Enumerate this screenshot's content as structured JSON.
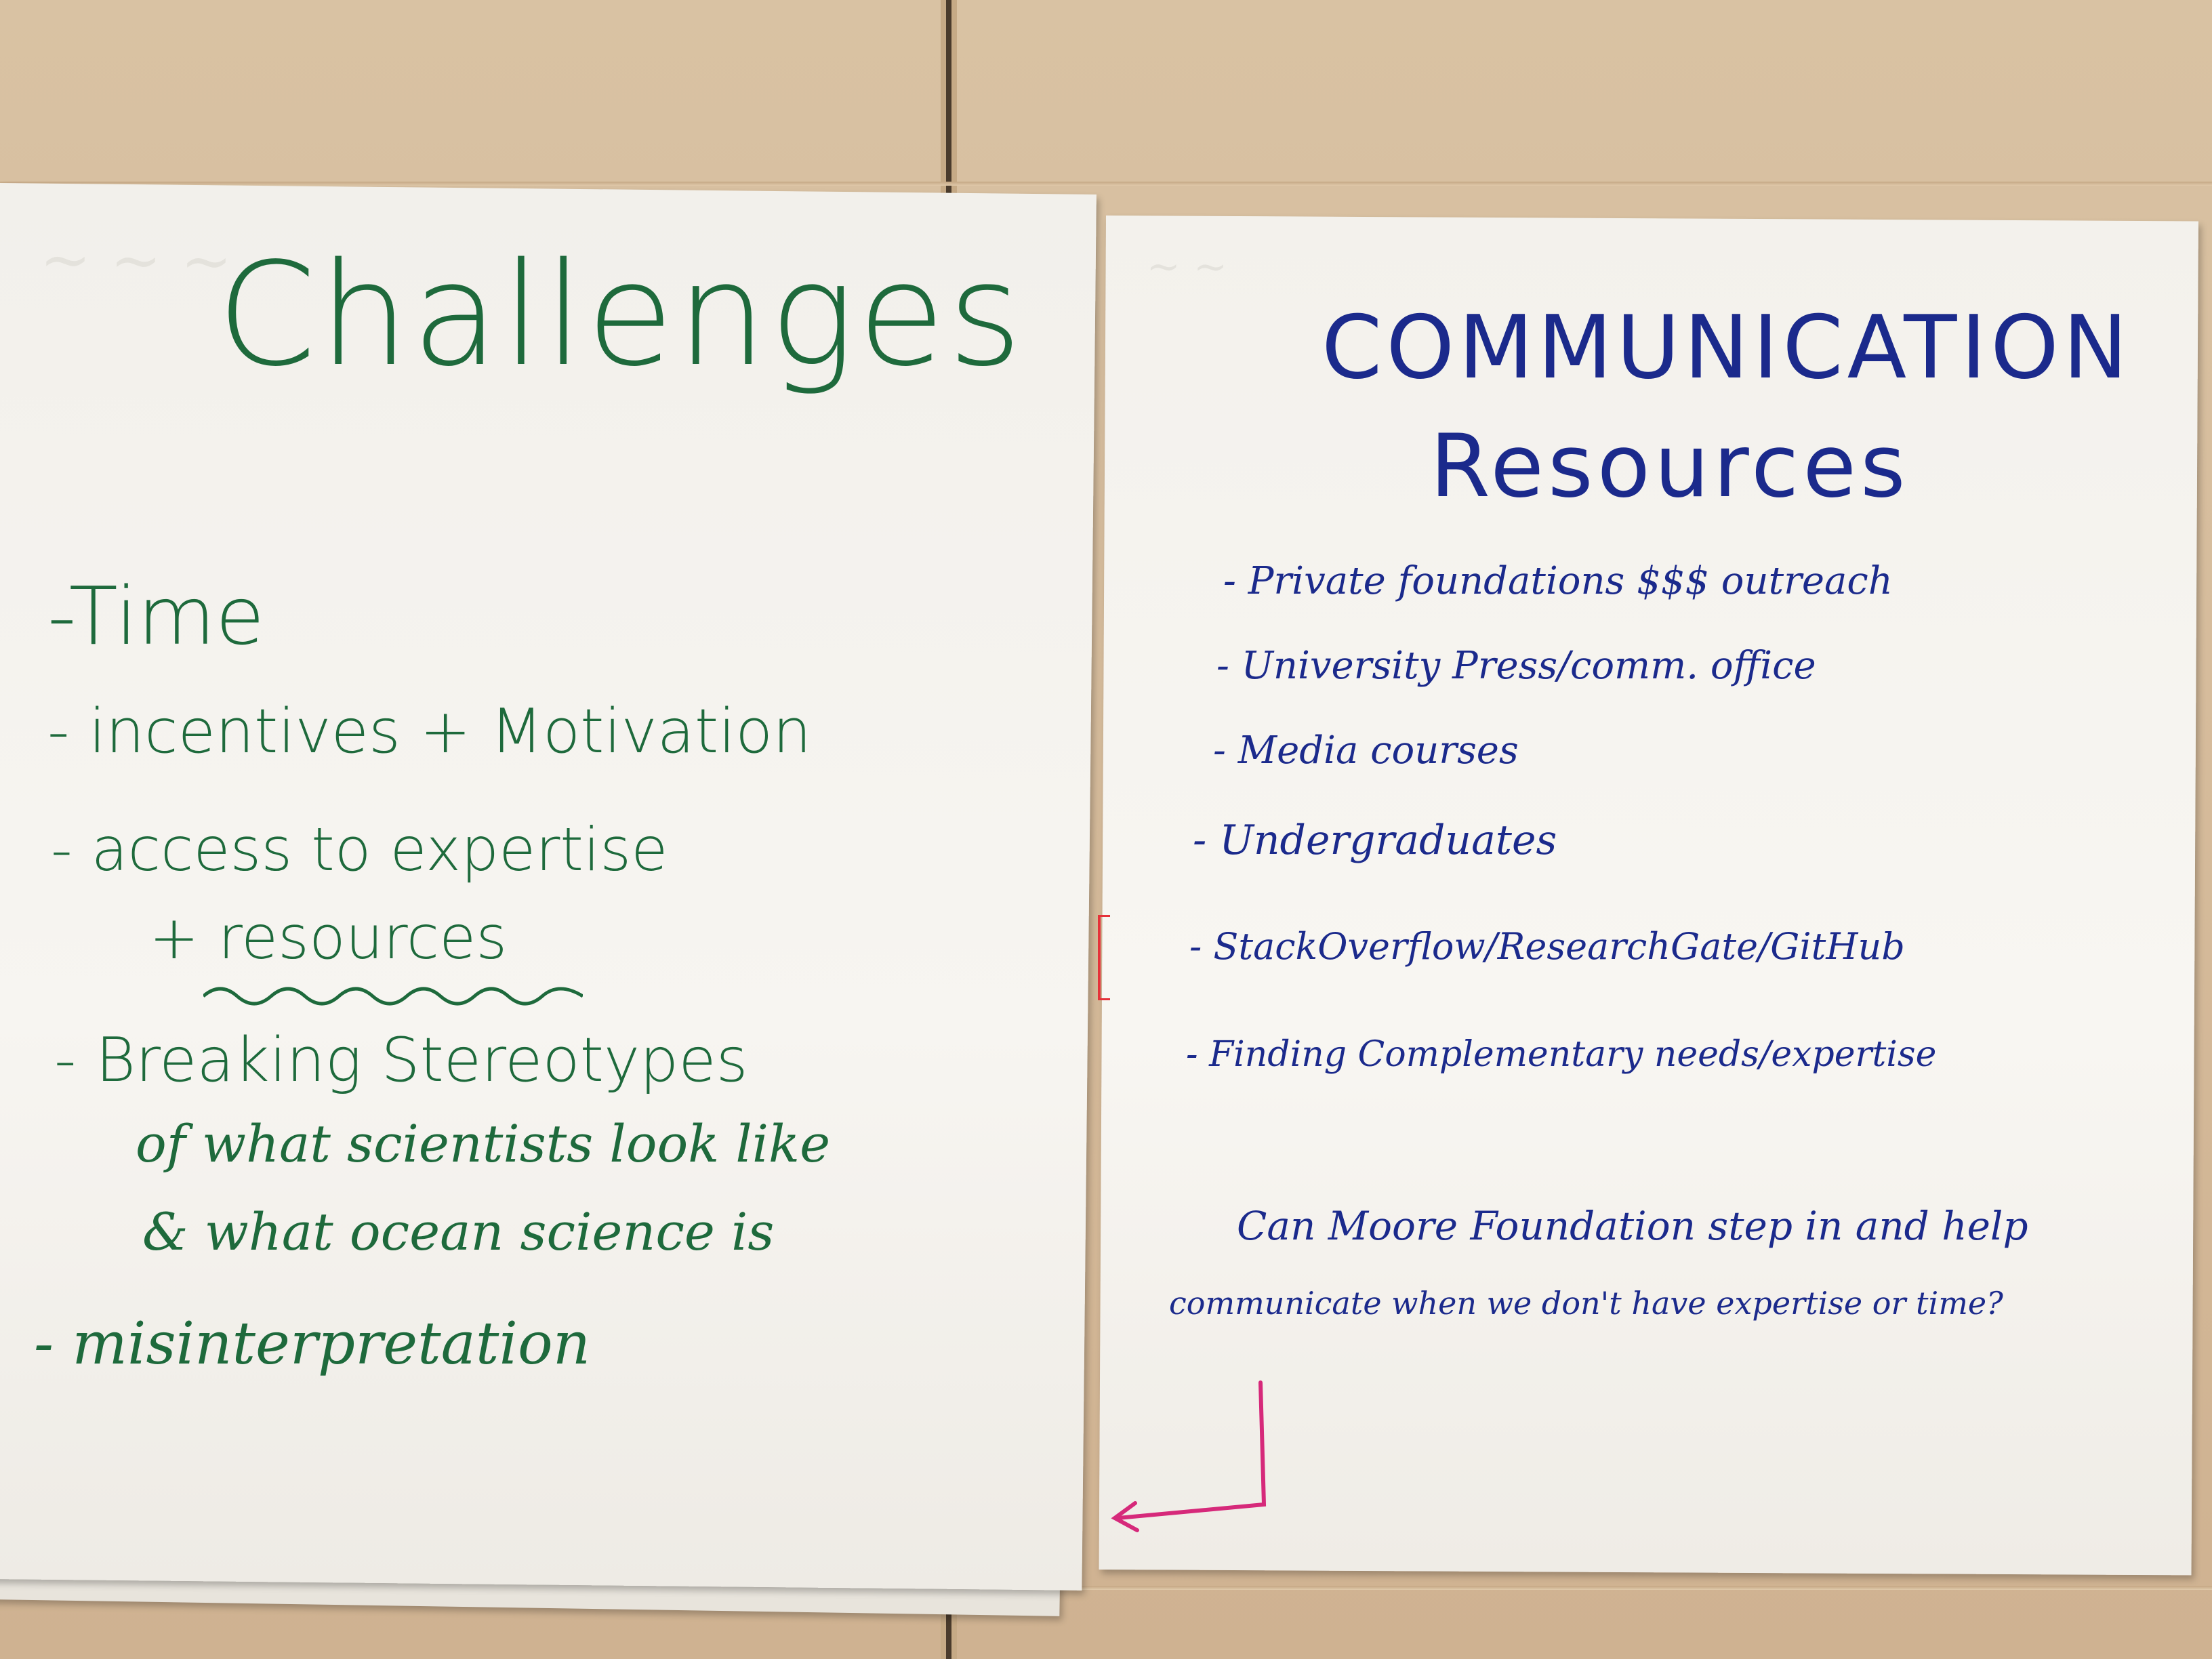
{
  "left_sheet": {
    "title": "Challenges",
    "items": [
      "-Time",
      "- incentives + Motivation",
      "- access to expertise",
      "+ resources",
      "- Breaking Stereotypes",
      "of what scientists look like",
      "& what ocean science is",
      "- misinterpretation"
    ]
  },
  "right_sheet": {
    "title_line1": "COMMUNICATION",
    "title_line2": "Resources",
    "items": [
      "- Private foundations  $$$ outreach",
      "- University Press/comm. office",
      "- Media courses",
      "- Undergraduates",
      "- StackOverflow/ResearchGate/GitHub",
      "- Finding Complementary needs/expertise"
    ],
    "question_line1": "Can Moore Foundation step in and help",
    "question_line2": "communicate when we don't have expertise or time?"
  },
  "colors": {
    "green_marker": "#1e6a3c",
    "blue_marker": "#1b2a8c",
    "magenta_arrow": "#d6297a",
    "wall": "#d8bfa0",
    "paper": "#f4f2ee"
  }
}
